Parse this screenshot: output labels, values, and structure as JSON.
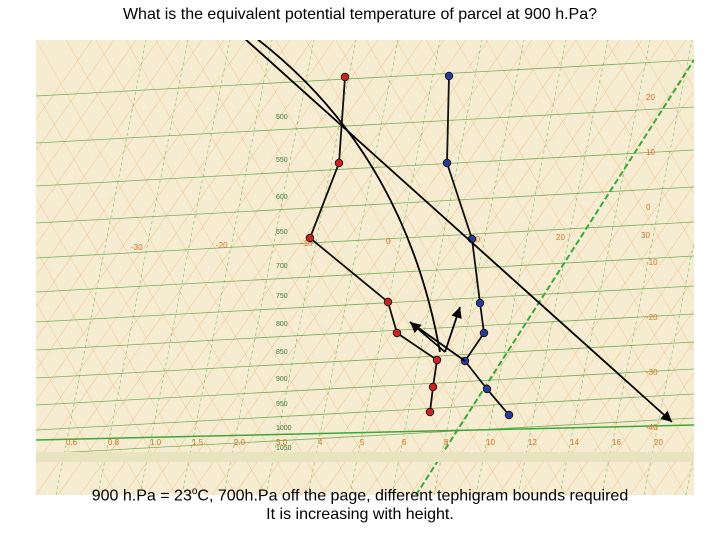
{
  "question": "What is the equivalent potential temperature of parcel at 900 h.Pa?",
  "answer": {
    "line1_prefix": "900 h.Pa = 23",
    "line1_degree": "o",
    "line1_suffix": "C, 700h.Pa off the page, different tephigram bounds required",
    "line2": "It is increasing with height."
  },
  "pressure_labels": [
    "500",
    "550",
    "600",
    "650",
    "700",
    "750",
    "800",
    "850",
    "900",
    "950",
    "1000",
    "1050"
  ],
  "temperature_labels": [
    "-30",
    "-20",
    "-10",
    "0",
    "10",
    "20",
    "30"
  ],
  "mixing_ratio_labels": [
    "0.6",
    "0.8",
    "1.0",
    "1.5",
    "2.0",
    "3.0",
    "4",
    "5",
    "6",
    "8",
    "10",
    "12",
    "14",
    "16",
    "20"
  ],
  "theta_labels": [
    "20",
    "10",
    "0",
    "-10",
    "-20",
    "-30",
    "-40"
  ],
  "colors": {
    "chart_background": "#f6ecd2",
    "isobar": "#6aa84f",
    "theta_line": "#e69138",
    "mixing_ratio": "#38a838",
    "temperature_profile": "#cc2222",
    "dewpoint_profile": "#2a3a9a",
    "annotation": "#000000"
  }
}
